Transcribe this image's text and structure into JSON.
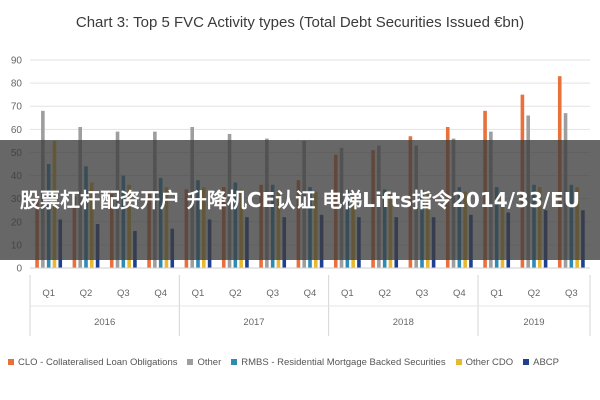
{
  "overlay": {
    "text": "股票杠杆配资开户 升降机CE认证 电梯Lifts指令2014/33/EU"
  },
  "chart_data": {
    "type": "bar",
    "title": "Chart 3: Top 5 FVC Activity types (Total Debt Securities Issued €bn)",
    "ylim": [
      0,
      90
    ],
    "yticks": [
      0,
      10,
      20,
      30,
      40,
      50,
      60,
      70,
      80,
      90
    ],
    "grid": true,
    "legend_position": "bottom",
    "categories": [
      "Q1",
      "Q2",
      "Q3",
      "Q4",
      "Q1",
      "Q2",
      "Q3",
      "Q4",
      "Q1",
      "Q2",
      "Q3",
      "Q4",
      "Q1",
      "Q2",
      "Q3"
    ],
    "years": [
      {
        "label": "2016",
        "count": 4
      },
      {
        "label": "2017",
        "count": 4
      },
      {
        "label": "2018",
        "count": 4
      },
      {
        "label": "2019",
        "count": 3
      }
    ],
    "series": [
      {
        "name": "CLO - Collateralised Loan Obligations",
        "color": "#e8703a",
        "values": [
          30,
          31,
          32,
          33,
          34,
          35,
          36,
          38,
          49,
          51,
          57,
          61,
          68,
          75,
          83
        ]
      },
      {
        "name": "Other",
        "color": "#9e9e9e",
        "values": [
          68,
          61,
          59,
          59,
          61,
          58,
          56,
          55,
          52,
          53,
          53,
          56,
          59,
          66,
          67
        ]
      },
      {
        "name": "RMBS - Residential Mortgage Backed Securities",
        "color": "#2e8bb5",
        "values": [
          45,
          44,
          40,
          39,
          38,
          37,
          36,
          35,
          34,
          34,
          34,
          35,
          35,
          36,
          36
        ]
      },
      {
        "name": "Other CDO",
        "color": "#e8b830",
        "values": [
          55,
          37,
          36,
          35,
          35,
          34,
          33,
          33,
          32,
          32,
          33,
          33,
          33,
          35,
          35
        ]
      },
      {
        "name": "ABCP",
        "color": "#1f3f8f",
        "values": [
          21,
          19,
          16,
          17,
          21,
          22,
          22,
          23,
          22,
          22,
          22,
          23,
          24,
          25,
          25
        ]
      }
    ]
  }
}
